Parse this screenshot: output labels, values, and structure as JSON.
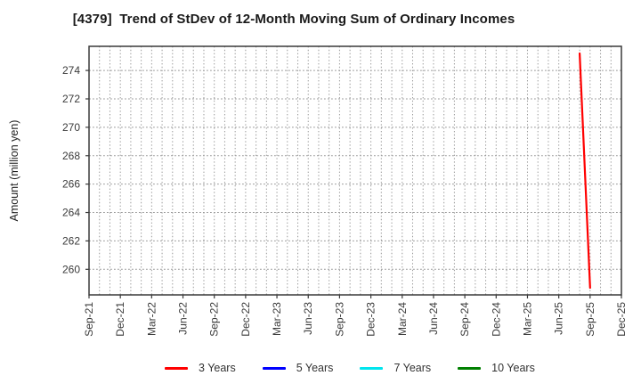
{
  "chart_data": {
    "type": "line",
    "title": "[4379]  Trend of StDev of 12-Month Moving Sum of Ordinary Incomes",
    "ylabel": "Amount (million yen)",
    "xlabel": "",
    "x_axis": {
      "unit": "month",
      "start": "Sep-21",
      "end": "Dec-25",
      "months_span": 51,
      "tick_every_months": 3,
      "tick_labels": [
        "Sep-21",
        "Dec-21",
        "Mar-22",
        "Jun-22",
        "Sep-22",
        "Dec-22",
        "Mar-23",
        "Jun-23",
        "Sep-23",
        "Dec-23",
        "Mar-24",
        "Jun-24",
        "Sep-24",
        "Dec-24",
        "Mar-25",
        "Jun-25",
        "Sep-25",
        "Dec-25"
      ],
      "gridlines": "dotted, every month"
    },
    "y_axis": {
      "ticks": [
        260,
        262,
        264,
        266,
        268,
        270,
        272,
        274
      ],
      "lim": [
        258.2,
        275.7
      ],
      "gridlines": "dotted, every 2 units"
    },
    "series": [
      {
        "name": "3 Years",
        "color": "#ff0000",
        "points": [
          {
            "month": "Aug-25",
            "x": 47,
            "y": 275.2
          },
          {
            "month": "Sep-25",
            "x": 48,
            "y": 258.7
          }
        ]
      },
      {
        "name": "5 Years",
        "color": "#0000ff",
        "points": []
      },
      {
        "name": "7 Years",
        "color": "#00e5ee",
        "points": []
      },
      {
        "name": "10 Years",
        "color": "#008000",
        "points": []
      }
    ],
    "legend_position": "bottom",
    "grid_color": "#999999",
    "frame_color": "#3a3a3a",
    "tick_label_color": "#3a3a3a"
  }
}
